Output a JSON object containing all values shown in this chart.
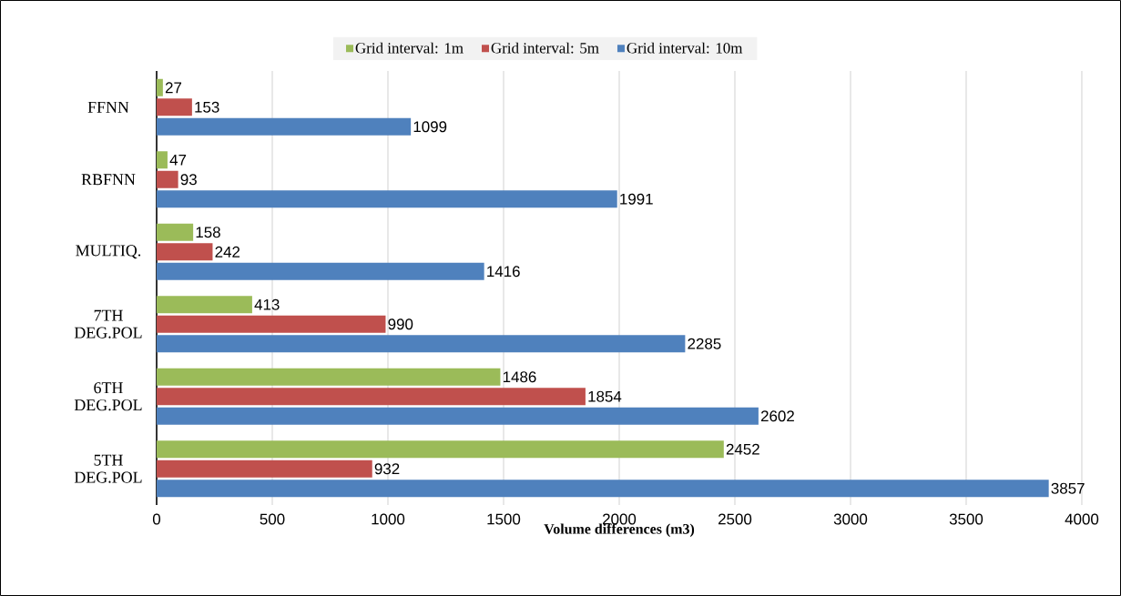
{
  "chart_data": {
    "type": "bar",
    "orientation": "horizontal",
    "categories": [
      "FFNN",
      "RBFNN",
      "MULTIQ.",
      "7TH DEG.POL",
      "6TH DEG.POL",
      "5TH DEG.POL"
    ],
    "series": [
      {
        "name": "Grid interval: 1m",
        "color": "#9bbb59",
        "values": [
          27,
          47,
          158,
          413,
          1486,
          2452
        ]
      },
      {
        "name": "Grid interval: 5m",
        "color": "#c0504d",
        "values": [
          153,
          93,
          242,
          990,
          1854,
          932
        ]
      },
      {
        "name": "Grid interval: 10m",
        "color": "#4f81bd",
        "values": [
          1099,
          1991,
          1416,
          2285,
          2602,
          3857
        ]
      }
    ],
    "xlabel": "Volume differences (m3)",
    "xlim": [
      0,
      4000
    ],
    "xticks": [
      0,
      500,
      1000,
      1500,
      2000,
      2500,
      3000,
      3500,
      4000
    ],
    "grid": "x",
    "legend": "top",
    "data_labels": true
  }
}
